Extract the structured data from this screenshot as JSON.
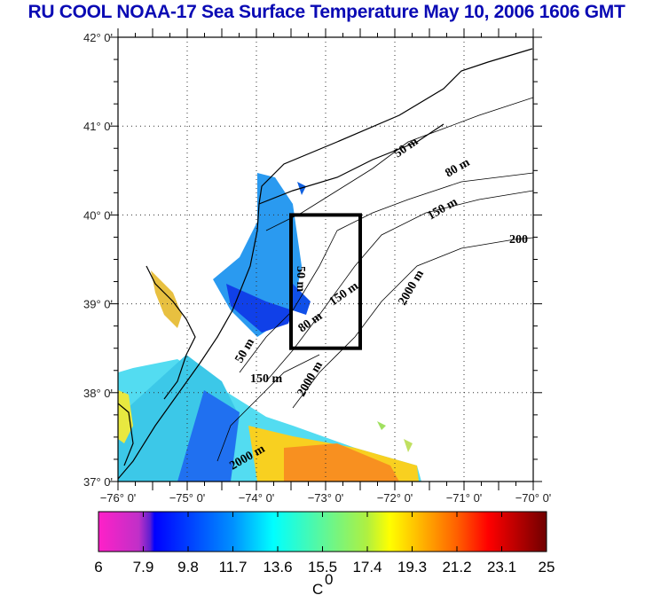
{
  "chart_data": {
    "type": "heatmap",
    "title": "RU COOL  NOAA-17 Sea Surface Temperature May 10, 2006 1606 GMT",
    "xlim": [
      -76,
      -70
    ],
    "ylim": [
      37,
      42
    ],
    "xticks": [
      -76,
      -75,
      -74,
      -73,
      -72,
      -71,
      -70
    ],
    "xtick_labels": [
      "-76° 0'",
      "-75° 0'",
      "-74° 0'",
      "-73° 0'",
      "-72° 0'",
      "-71° 0'",
      "-70° 0'"
    ],
    "yticks": [
      37,
      38,
      39,
      40,
      41,
      42
    ],
    "ytick_labels": [
      "37° 0'",
      "38° 0'",
      "39° 0'",
      "40° 0'",
      "41° 0'",
      "42° 0'"
    ],
    "grid": true,
    "study_box": {
      "lon": [
        -73.5,
        -72.5
      ],
      "lat": [
        38.5,
        40.0
      ]
    },
    "contour_labels": [
      "50 m",
      "80 m",
      "150 m",
      "2000 m",
      "200"
    ],
    "colorbar": {
      "label": "C",
      "label_superscript": "0",
      "range": [
        6,
        25
      ],
      "tick_values": [
        6,
        7.9,
        9.8,
        11.7,
        13.6,
        15.5,
        17.4,
        19.3,
        21.2,
        23.1,
        25
      ],
      "tick_labels": [
        "6",
        "7.9",
        "9.8",
        "11.7",
        "13.6",
        "15.5",
        "17.4",
        "19.3",
        "21.2",
        "23.1",
        "25"
      ],
      "colors": [
        "#ff20c8",
        "#7030d0",
        "#0000ff",
        "#0080ff",
        "#00ffff",
        "#80f080",
        "#ffff00",
        "#ffa000",
        "#ff2000",
        "#800000"
      ]
    }
  }
}
